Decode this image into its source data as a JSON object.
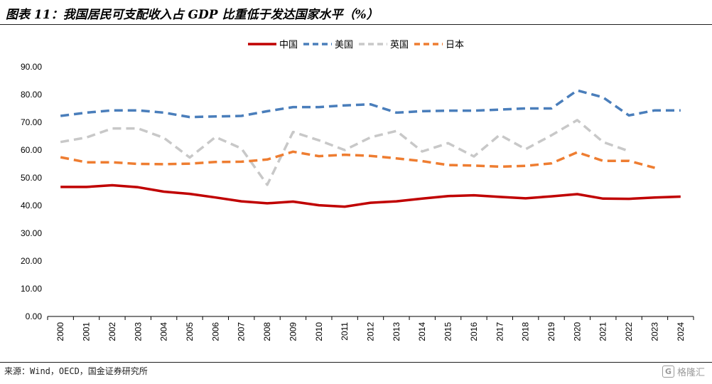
{
  "title": "图表 11：我国居民可支配收入占 GDP 比重低于发达国家水平（%）",
  "source": "来源：Wind，OECD，国金证券研究所",
  "watermark": "格隆汇",
  "colors": {
    "china": "#c00000",
    "usa": "#4a7ebb",
    "uk": "#c8c8c8",
    "japan": "#ee7d31"
  },
  "chart_data": {
    "type": "line",
    "x": [
      "2000",
      "2001",
      "2002",
      "2003",
      "2004",
      "2005",
      "2006",
      "2007",
      "2008",
      "2009",
      "2010",
      "2011",
      "2012",
      "2013",
      "2014",
      "2015",
      "2016",
      "2017",
      "2018",
      "2019",
      "2020",
      "2021",
      "2022",
      "2023",
      "2024"
    ],
    "ylim": [
      0,
      90
    ],
    "yticks": [
      "0.00",
      "10.00",
      "20.00",
      "30.00",
      "40.00",
      "50.00",
      "60.00",
      "70.00",
      "80.00",
      "90.00"
    ],
    "legend_position": "top-center",
    "series": [
      {
        "name": "中国",
        "style": "solid",
        "color": "#c00000",
        "values": [
          46.7,
          46.7,
          47.3,
          46.6,
          45.0,
          44.2,
          42.9,
          41.5,
          40.8,
          41.4,
          40.1,
          39.6,
          41.0,
          41.5,
          42.5,
          43.4,
          43.7,
          43.1,
          42.6,
          43.3,
          44.1,
          42.5,
          42.4,
          42.9,
          43.2
        ]
      },
      {
        "name": "美国",
        "style": "dashed",
        "color": "#4a7ebb",
        "values": [
          72.3,
          73.5,
          74.3,
          74.3,
          73.5,
          71.9,
          72.1,
          72.3,
          74.0,
          75.5,
          75.5,
          76.1,
          76.5,
          73.5,
          74.0,
          74.2,
          74.2,
          74.6,
          75.0,
          75.0,
          81.5,
          79.0,
          72.5,
          74.3,
          74.3
        ]
      },
      {
        "name": "英国",
        "style": "dashed",
        "color": "#c8c8c8",
        "values": [
          62.9,
          64.5,
          67.8,
          67.8,
          64.4,
          57.3,
          64.7,
          60.6,
          47.5,
          66.5,
          63.5,
          60.0,
          64.6,
          66.9,
          59.5,
          62.5,
          57.7,
          65.5,
          60.3,
          65.3,
          70.8,
          62.9,
          59.6,
          null,
          null
        ]
      },
      {
        "name": "日本",
        "style": "dashed",
        "color": "#ee7d31",
        "values": [
          57.4,
          55.6,
          55.6,
          55.0,
          54.9,
          55.1,
          55.7,
          55.8,
          56.6,
          59.4,
          57.8,
          58.3,
          57.9,
          57.0,
          56.0,
          54.6,
          54.4,
          54.0,
          54.3,
          55.2,
          59.2,
          56.1,
          56.1,
          53.6,
          null
        ]
      }
    ]
  }
}
